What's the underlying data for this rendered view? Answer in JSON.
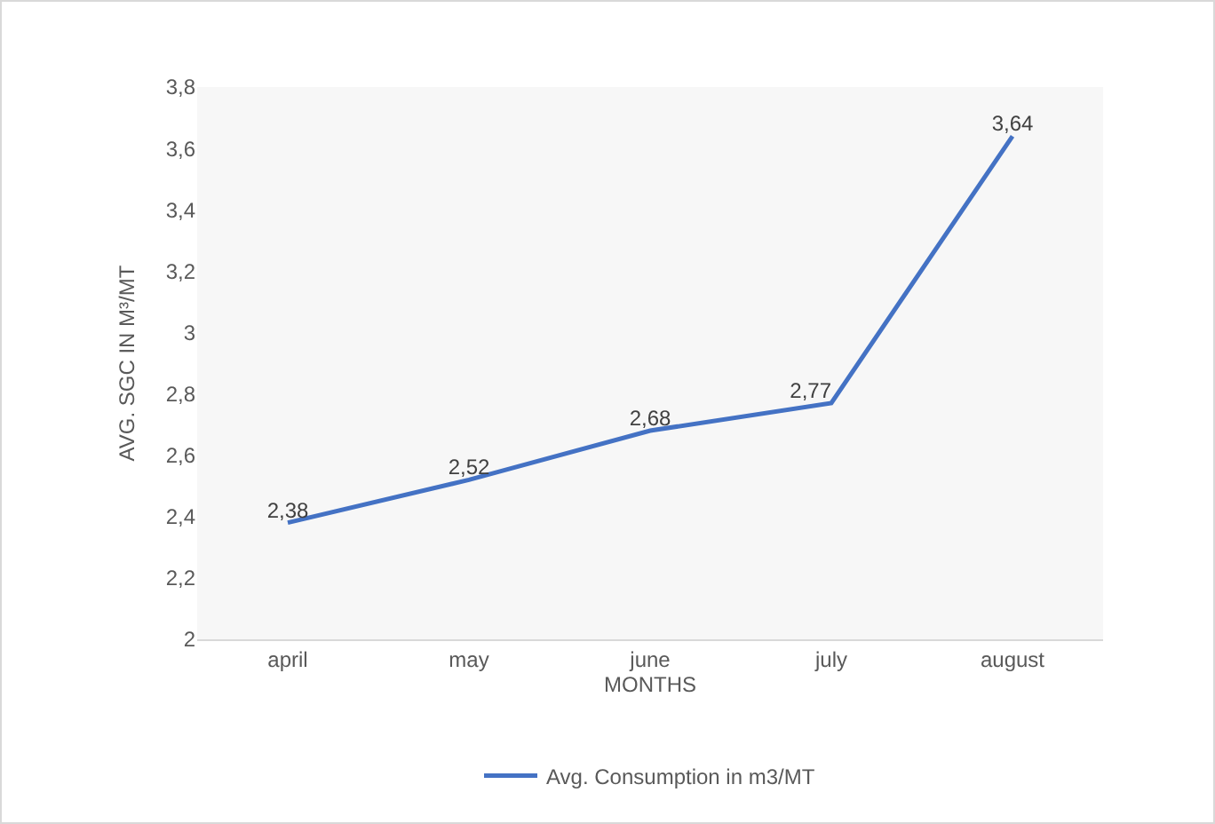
{
  "chart_data": {
    "type": "line",
    "xlabel": "MONTHS",
    "ylabel": "AVG. SGC IN M³/MT",
    "categories": [
      "april",
      "may",
      "june",
      "july",
      "august"
    ],
    "series": [
      {
        "name": "Avg. Consumption in m3/MT",
        "color": "#4472c4",
        "values": [
          2.38,
          2.52,
          2.68,
          2.77,
          3.64
        ],
        "value_labels": [
          "2,38",
          "2,52",
          "2,68",
          "2,77",
          "3,64"
        ]
      }
    ],
    "ylim": [
      2,
      3.8
    ],
    "yticks": [
      2,
      {
        "value": 2.2,
        "label": "2,2"
      },
      {
        "value": 2.4,
        "label": "2,4"
      },
      {
        "value": 2.6,
        "label": "2,6"
      },
      {
        "value": 2.8,
        "label": "2,8"
      },
      3,
      {
        "value": 3.2,
        "label": "3,2"
      },
      {
        "value": 3.4,
        "label": "3,4"
      },
      {
        "value": 3.6,
        "label": "3,6"
      },
      {
        "value": 3.8,
        "label": "3,8"
      }
    ],
    "grid": false,
    "legend": "bottom",
    "marker": "none",
    "line_style": "solid"
  }
}
